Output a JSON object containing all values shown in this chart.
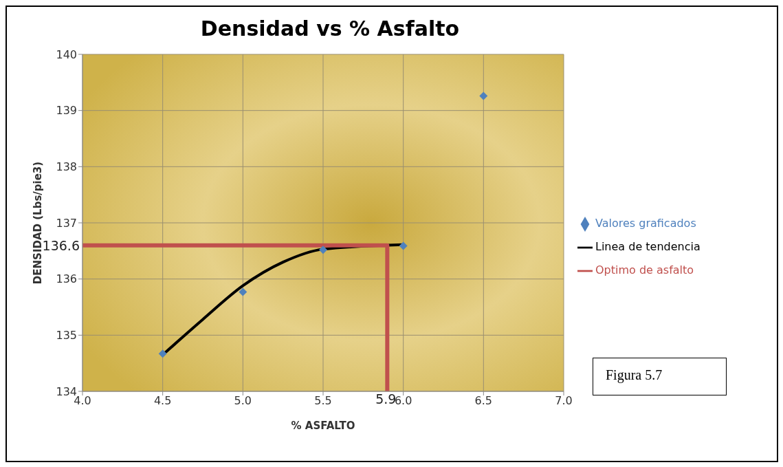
{
  "chart_data": {
    "type": "scatter",
    "title": "Densidad vs % Asfalto",
    "xlabel": "% ASFALTO",
    "ylabel": "DENSIDAD  (Lbs/pie3)",
    "xlim": [
      4.0,
      7.0
    ],
    "xticks": [
      {
        "value": 4.0,
        "label": "4.0"
      },
      {
        "value": 4.5,
        "label": "4.5"
      },
      {
        "value": 5.0,
        "label": "5.0"
      },
      {
        "value": 5.5,
        "label": "5.5"
      },
      {
        "value": 6.0,
        "label": "6.0"
      },
      {
        "value": 6.5,
        "label": "6.5"
      },
      {
        "value": 7.0,
        "label": "7.0"
      }
    ],
    "ylim": [
      134,
      140
    ],
    "yticks": [
      134,
      135,
      136,
      137,
      138,
      139,
      140
    ],
    "grid": true,
    "legend": "right",
    "series": [
      {
        "name": "Valores graficados",
        "marker": "diamond",
        "color": "#4f81bd",
        "x": [
          4.5,
          5.0,
          5.5,
          6.0,
          6.5
        ],
        "values": [
          134.67,
          135.77,
          136.52,
          136.59,
          139.26
        ]
      },
      {
        "name": "Linea de tendencia",
        "type": "line",
        "marker": "none",
        "color": "#000000",
        "x": [
          4.5,
          4.75,
          5.0,
          5.25,
          5.5,
          5.75,
          6.0
        ],
        "values": [
          134.65,
          135.28,
          135.88,
          136.3,
          136.53,
          null,
          136.61
        ]
      },
      {
        "name": "Optimo de asfalto",
        "type": "line",
        "marker": "none",
        "color": "#c0504d",
        "x": [
          4.0,
          5.9,
          5.9
        ],
        "values": [
          136.6,
          136.6,
          134
        ]
      }
    ],
    "annotations": [
      {
        "text": "136.6",
        "x": 4.0,
        "y": 136.6
      },
      {
        "text": "5.9",
        "x": 5.9,
        "y": 134
      },
      "Figura 5.7"
    ]
  }
}
